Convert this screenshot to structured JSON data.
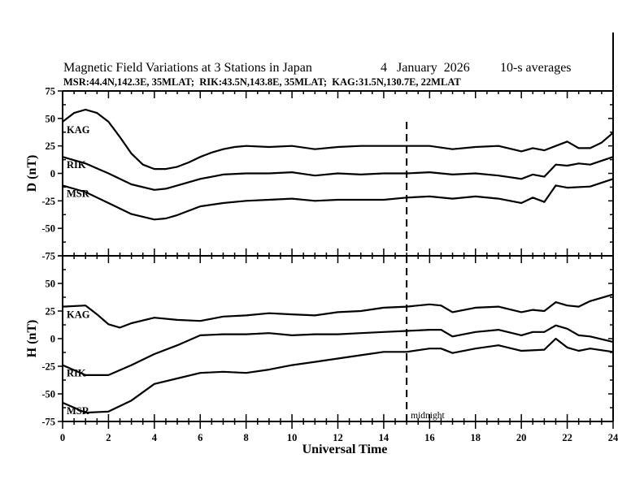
{
  "header": {
    "title": "Magnetic Field Variations at 3 Stations in Japan",
    "date": "4   January  2026",
    "averaging": "10-s averages",
    "stations_line": "MSR:44.4N,142.3E, 35MLAT;  RIK:43.5N,143.8E, 35MLAT;  KAG:31.5N,130.7E, 22MLAT"
  },
  "annotation": {
    "midnight_label": "midnight",
    "midnight_ut": 15
  },
  "chart_data": [
    {
      "type": "line",
      "panel": "top",
      "title": "Magnetic Field Variations at 3 Stations in Japan",
      "xlabel": "Universal Time",
      "ylabel": "D (nT)",
      "xlim": [
        0,
        24
      ],
      "ylim": [
        -75,
        75
      ],
      "xticks": [
        "0",
        "2",
        "4",
        "6",
        "8",
        "10",
        "12",
        "14",
        "16",
        "18",
        "20",
        "22",
        "24"
      ],
      "yticks": [
        "75",
        "50",
        "25",
        "0",
        "-25",
        "-50",
        "-75"
      ],
      "grid": false,
      "series": [
        {
          "name": "KAG",
          "x": [
            0,
            0.5,
            1,
            1.5,
            2,
            2.5,
            3,
            3.5,
            4,
            4.5,
            5,
            5.5,
            6,
            6.5,
            7,
            7.5,
            8,
            9,
            10,
            11,
            12,
            13,
            14,
            15,
            16,
            17,
            18,
            19,
            20,
            20.5,
            21,
            21.5,
            22,
            22.5,
            23,
            23.5,
            24
          ],
          "values": [
            47,
            55,
            58,
            55,
            47,
            33,
            18,
            8,
            4,
            4,
            6,
            10,
            15,
            19,
            22,
            24,
            25,
            24,
            25,
            22,
            24,
            25,
            25,
            25,
            25,
            22,
            24,
            25,
            20,
            23,
            21,
            25,
            29,
            23,
            23,
            28,
            37
          ]
        },
        {
          "name": "RIK",
          "x": [
            0,
            1,
            2,
            3,
            4,
            4.5,
            5,
            6,
            7,
            8,
            9,
            10,
            11,
            12,
            13,
            14,
            15,
            16,
            17,
            18,
            19,
            20,
            20.5,
            21,
            21.5,
            22,
            22.5,
            23,
            24
          ],
          "values": [
            15,
            9,
            0,
            -10,
            -15,
            -14,
            -11,
            -5,
            -1,
            0,
            0,
            1,
            -2,
            0,
            -1,
            0,
            0,
            1,
            -1,
            0,
            -2,
            -5,
            -1,
            -3,
            8,
            7,
            9,
            8,
            15
          ]
        },
        {
          "name": "MSR",
          "x": [
            0,
            1,
            2,
            3,
            4,
            4.5,
            5,
            6,
            7,
            8,
            9,
            10,
            11,
            12,
            13,
            14,
            15,
            16,
            17,
            18,
            19,
            20,
            20.5,
            21,
            21.5,
            22,
            23,
            24
          ],
          "values": [
            -11,
            -17,
            -27,
            -37,
            -42,
            -41,
            -38,
            -30,
            -27,
            -25,
            -24,
            -23,
            -25,
            -24,
            -24,
            -24,
            -22,
            -21,
            -23,
            -21,
            -23,
            -27,
            -22,
            -26,
            -11,
            -13,
            -12,
            -5
          ]
        }
      ]
    },
    {
      "type": "line",
      "panel": "bottom",
      "xlabel": "Universal Time",
      "ylabel": "H (nT)",
      "xlim": [
        0,
        24
      ],
      "ylim": [
        -75,
        75
      ],
      "xticks": [
        "0",
        "2",
        "4",
        "6",
        "8",
        "10",
        "12",
        "14",
        "16",
        "18",
        "20",
        "22",
        "24"
      ],
      "yticks": [
        "50",
        "25",
        "0",
        "-25",
        "-50",
        "-75"
      ],
      "grid": false,
      "series": [
        {
          "name": "KAG",
          "x": [
            0,
            1,
            1.5,
            2,
            2.5,
            3,
            4,
            5,
            6,
            7,
            8,
            9,
            10,
            11,
            12,
            13,
            14,
            15,
            16,
            16.5,
            17,
            18,
            19,
            20,
            20.5,
            21,
            21.5,
            22,
            22.5,
            23,
            24
          ],
          "values": [
            29,
            30,
            22,
            13,
            10,
            14,
            19,
            17,
            16,
            20,
            21,
            23,
            22,
            21,
            24,
            25,
            28,
            29,
            31,
            30,
            24,
            28,
            29,
            24,
            26,
            25,
            33,
            30,
            29,
            34,
            40
          ]
        },
        {
          "name": "RIK",
          "x": [
            0,
            1,
            2,
            3,
            4,
            5,
            6,
            7,
            8,
            9,
            10,
            11,
            12,
            13,
            14,
            15,
            16,
            16.5,
            17,
            18,
            19,
            20,
            20.5,
            21,
            21.5,
            22,
            22.5,
            23,
            24
          ],
          "values": [
            -24,
            -33,
            -33,
            -24,
            -14,
            -6,
            3,
            4,
            4,
            5,
            3,
            4,
            4,
            5,
            6,
            7,
            8,
            8,
            2,
            6,
            8,
            3,
            6,
            6,
            12,
            9,
            3,
            2,
            -3
          ]
        },
        {
          "name": "MSR",
          "x": [
            0,
            1,
            2,
            3,
            4,
            5,
            6,
            7,
            8,
            9,
            10,
            11,
            12,
            13,
            14,
            15,
            16,
            16.5,
            17,
            18,
            19,
            20,
            21,
            21.5,
            22,
            22.5,
            23,
            24
          ],
          "values": [
            -58,
            -67,
            -66,
            -56,
            -41,
            -36,
            -31,
            -30,
            -31,
            -28,
            -24,
            -21,
            -18,
            -15,
            -12,
            -12,
            -9,
            -9,
            -13,
            -9,
            -6,
            -11,
            -10,
            0,
            -8,
            -11,
            -9,
            -12
          ]
        }
      ]
    }
  ]
}
